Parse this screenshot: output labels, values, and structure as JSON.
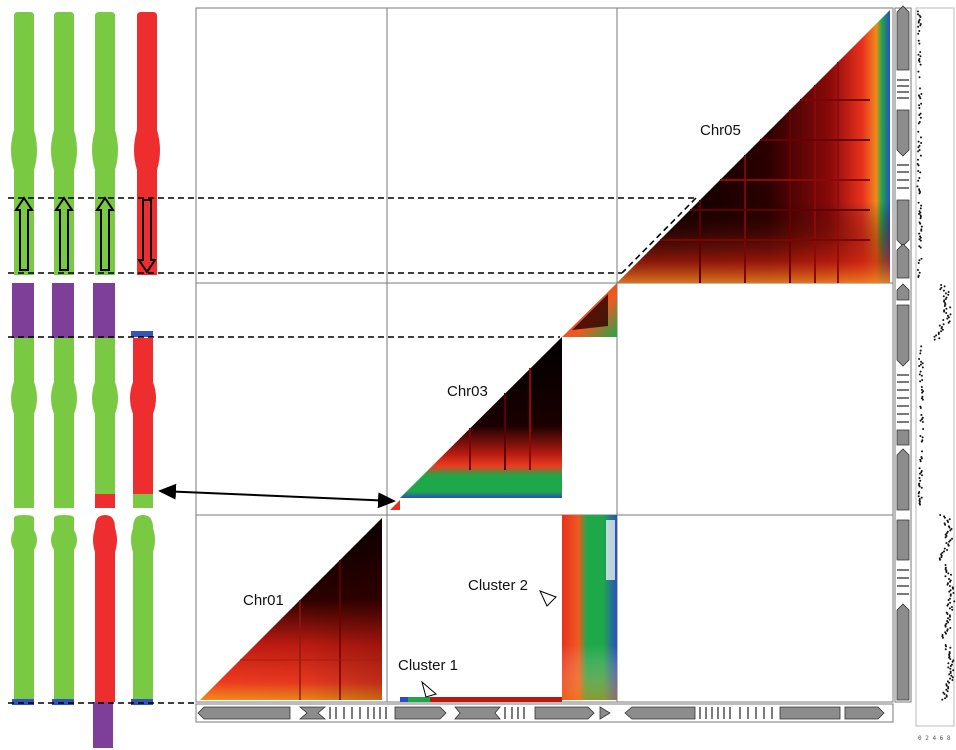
{
  "colors": {
    "green": "#7ac943",
    "red": "#ee2e2e",
    "purple": "#7d3f98",
    "blue": "#3355bb",
    "black": "#000000",
    "darkred": "#5a0000",
    "orange": "#f6931e",
    "gray": "#8c8c8c"
  },
  "labels": {
    "chr05": "Chr05",
    "chr03": "Chr03",
    "chr01": "Chr01",
    "cluster1": "Cluster 1",
    "cluster2": "Cluster 2"
  },
  "chromosome_columns": [
    {
      "segments": [
        "green",
        "purple",
        "green",
        "green",
        "blue"
      ]
    },
    {
      "segments": [
        "green",
        "purple",
        "green",
        "green",
        "blue"
      ]
    },
    {
      "segments": [
        "green",
        "purple",
        "green",
        "red",
        "red",
        "purple"
      ]
    },
    {
      "segments": [
        "red",
        "blue",
        "red",
        "green",
        "green",
        "blue"
      ]
    }
  ],
  "heatmap_blocks": [
    "Chr01",
    "Chr03",
    "Chr05"
  ],
  "bottom_axis_ticks": "0 2 4 6 8"
}
